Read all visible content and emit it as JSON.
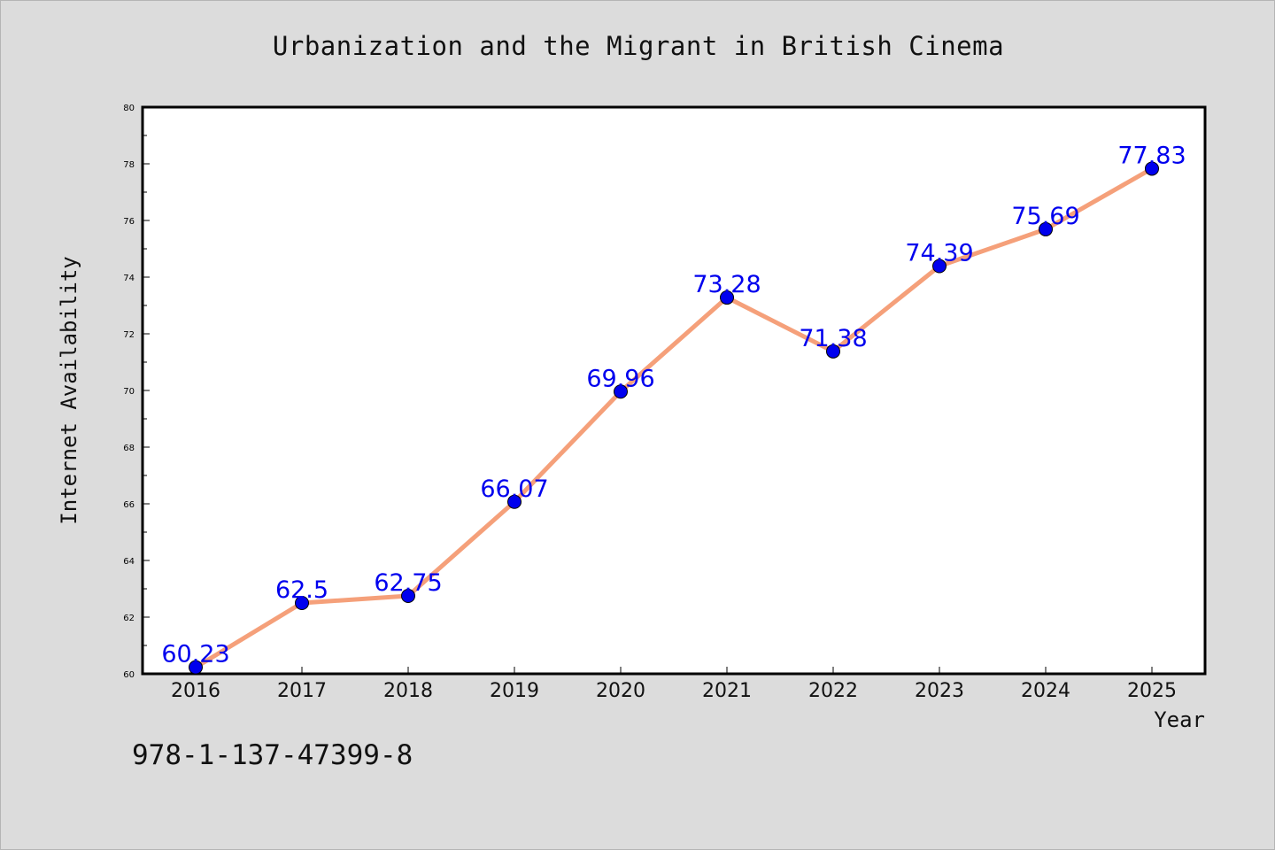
{
  "title": "Urbanization and the Migrant in British Cinema",
  "footer_text": "978-1-137-47399-8",
  "chart_data": {
    "type": "line",
    "title": "Urbanization and the Migrant in British Cinema",
    "xlabel": "Year",
    "ylabel": "Internet Availability",
    "categories": [
      "2016",
      "2017",
      "2018",
      "2019",
      "2020",
      "2021",
      "2022",
      "2023",
      "2024",
      "2025"
    ],
    "series": [
      {
        "values": [
          60.23,
          62.5,
          62.75,
          66.07,
          69.96,
          73.28,
          71.38,
          74.39,
          75.69,
          77.83
        ],
        "labels": [
          "60.23",
          "62.5",
          "62.75",
          "66.07",
          "69.96",
          "73.28",
          "71.38",
          "74.39",
          "75.69",
          "77.83"
        ],
        "line_color": "#f5a07a",
        "marker_color": "#0000ee",
        "label_color": "#0000ee"
      }
    ],
    "ylim": [
      60,
      80
    ],
    "yticks": [
      "60",
      "62",
      "64",
      "66",
      "68",
      "70",
      "72",
      "74",
      "76",
      "78",
      "80"
    ],
    "grid": false,
    "legend": "none",
    "background_color": "#dcdcdc",
    "plot_background_color": "#ffffff"
  }
}
